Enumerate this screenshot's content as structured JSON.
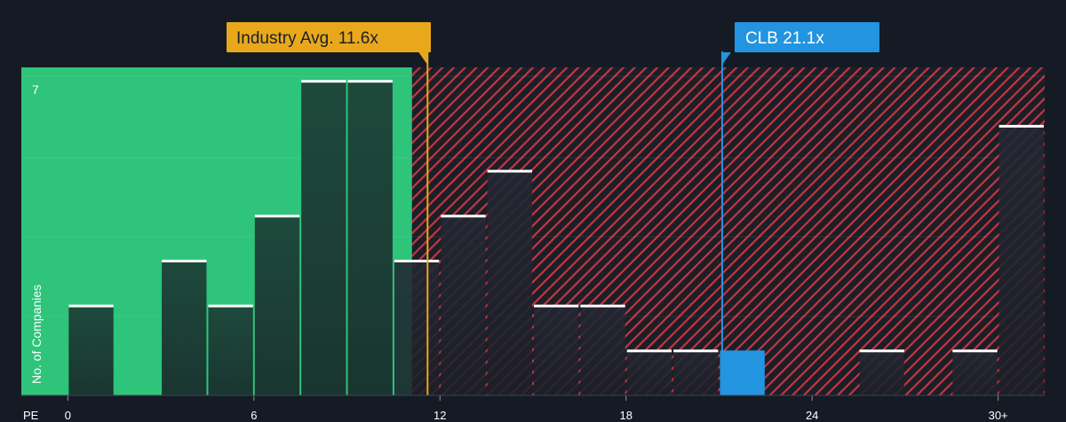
{
  "chart_data": {
    "type": "bar",
    "xlabel": "PE",
    "ylabel": "No. of Companies",
    "x_ticks": [
      {
        "value": 0,
        "label": "0"
      },
      {
        "value": 6,
        "label": "6"
      },
      {
        "value": 12,
        "label": "12"
      },
      {
        "value": 18,
        "label": "18"
      },
      {
        "value": 24,
        "label": "24"
      },
      {
        "value": 30,
        "label": "30+"
      }
    ],
    "y_tick_label": "7",
    "y_max": 7,
    "xlim": [
      -1.5,
      31.5
    ],
    "ylim": [
      0,
      7.3
    ],
    "bin_width": 1.5,
    "bins": [
      {
        "start": 0,
        "value": 2
      },
      {
        "start": 1.5,
        "value": 0
      },
      {
        "start": 3,
        "value": 3
      },
      {
        "start": 4.5,
        "value": 2
      },
      {
        "start": 6,
        "value": 4
      },
      {
        "start": 7.5,
        "value": 7
      },
      {
        "start": 9,
        "value": 7
      },
      {
        "start": 10.5,
        "value": 3
      },
      {
        "start": 12,
        "value": 4
      },
      {
        "start": 13.5,
        "value": 5
      },
      {
        "start": 15,
        "value": 2
      },
      {
        "start": 16.5,
        "value": 2
      },
      {
        "start": 18,
        "value": 1
      },
      {
        "start": 19.5,
        "value": 1
      },
      {
        "start": 21,
        "value": 1,
        "highlight": true
      },
      {
        "start": 22.5,
        "value": 0
      },
      {
        "start": 24,
        "value": 0
      },
      {
        "start": 25.5,
        "value": 1
      },
      {
        "start": 27,
        "value": 0
      },
      {
        "start": 28.5,
        "value": 1
      },
      {
        "start": 30,
        "value": 6
      }
    ],
    "fair_zone_end": 11.1,
    "industry_avg": {
      "label": "Industry Avg. 11.6x",
      "value": 11.6
    },
    "company": {
      "label": "CLB 21.1x",
      "value": 21.1
    },
    "colors": {
      "background": "#151b24",
      "fair_zone": "#2ec47a",
      "overvalued_stripe": "#d23a45",
      "bar_dark": "#1d3b34",
      "bar_dark_zone": "#1a2a30",
      "bar_highlight": "#2394e0",
      "bar_cap": "#ffffff",
      "industry": "#e9a81c",
      "company": "#2394e0",
      "grid": "#3a4452"
    }
  }
}
